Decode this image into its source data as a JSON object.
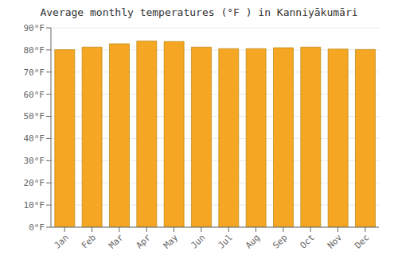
{
  "chart_data": {
    "type": "bar",
    "title": "Average monthly temperatures (°F ) in Kanniyākumāri",
    "categories": [
      "Jan",
      "Feb",
      "Mar",
      "Apr",
      "May",
      "Jun",
      "Jul",
      "Aug",
      "Sep",
      "Oct",
      "Nov",
      "Dec"
    ],
    "values": [
      80.1,
      81.3,
      82.8,
      84.0,
      83.8,
      81.3,
      80.6,
      80.6,
      81.0,
      81.3,
      80.4,
      80.2
    ],
    "color": "#F5A623",
    "ylim": [
      0,
      90
    ],
    "yticks": [
      {
        "value": 0,
        "label": "0°F"
      },
      {
        "value": 10,
        "label": "10°F"
      },
      {
        "value": 20,
        "label": "20°F"
      },
      {
        "value": 30,
        "label": "30°F"
      },
      {
        "value": 40,
        "label": "40°F"
      },
      {
        "value": 50,
        "label": "50°F"
      },
      {
        "value": 60,
        "label": "60°F"
      },
      {
        "value": 70,
        "label": "70°F"
      },
      {
        "value": 80,
        "label": "80°F"
      },
      {
        "value": 90,
        "label": "90°F"
      }
    ],
    "grid": true
  }
}
